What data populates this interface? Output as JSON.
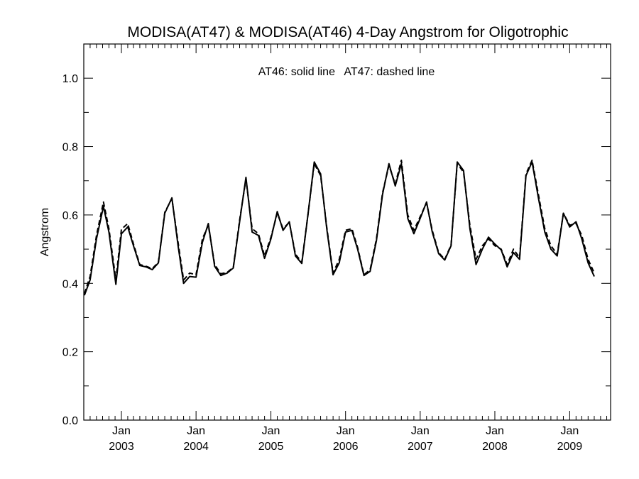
{
  "chart_data": {
    "type": "line",
    "title": "MODISA(AT47) & MODISA(AT46) 4-Day Angstrom for Oligotrophic",
    "annotation": "AT46: solid line   AT47: dashed line",
    "ylabel": "Angstrom",
    "xlabel": "",
    "ylim": [
      0.0,
      1.1
    ],
    "xlim": [
      "2002-07-01",
      "2009-07-20"
    ],
    "yticks": [
      {
        "value": 0.0,
        "label": "0.0"
      },
      {
        "value": 0.2,
        "label": "0.2"
      },
      {
        "value": 0.4,
        "label": "0.4"
      },
      {
        "value": 0.6,
        "label": "0.6"
      },
      {
        "value": 0.8,
        "label": "0.8"
      },
      {
        "value": 1.0,
        "label": "1.0"
      }
    ],
    "xticks": [
      {
        "date": "2003-01-01",
        "month": "Jan",
        "year": "2003"
      },
      {
        "date": "2004-01-01",
        "month": "Jan",
        "year": "2004"
      },
      {
        "date": "2005-01-01",
        "month": "Jan",
        "year": "2005"
      },
      {
        "date": "2006-01-01",
        "month": "Jan",
        "year": "2006"
      },
      {
        "date": "2007-01-01",
        "month": "Jan",
        "year": "2007"
      },
      {
        "date": "2008-01-01",
        "month": "Jan",
        "year": "2008"
      },
      {
        "date": "2009-01-01",
        "month": "Jan",
        "year": "2009"
      }
    ],
    "grid": false,
    "series": [
      {
        "name": "AT46",
        "style": "solid",
        "color": "#000000",
        "points": [
          [
            "2002-07-04",
            0.365
          ],
          [
            "2002-08-01",
            0.41
          ],
          [
            "2002-09-01",
            0.53
          ],
          [
            "2002-10-05",
            0.625
          ],
          [
            "2002-11-01",
            0.55
          ],
          [
            "2002-12-05",
            0.397
          ],
          [
            "2003-01-01",
            0.545
          ],
          [
            "2003-02-01",
            0.565
          ],
          [
            "2003-03-01",
            0.51
          ],
          [
            "2003-04-01",
            0.452
          ],
          [
            "2003-05-01",
            0.448
          ],
          [
            "2003-06-01",
            0.44
          ],
          [
            "2003-07-01",
            0.46
          ],
          [
            "2003-08-01",
            0.605
          ],
          [
            "2003-09-05",
            0.65
          ],
          [
            "2003-10-05",
            0.51
          ],
          [
            "2003-11-01",
            0.4
          ],
          [
            "2003-12-01",
            0.42
          ],
          [
            "2004-01-01",
            0.418
          ],
          [
            "2004-02-01",
            0.52
          ],
          [
            "2004-03-01",
            0.575
          ],
          [
            "2004-04-01",
            0.45
          ],
          [
            "2004-05-01",
            0.423
          ],
          [
            "2004-06-01",
            0.43
          ],
          [
            "2004-07-01",
            0.445
          ],
          [
            "2004-08-01",
            0.58
          ],
          [
            "2004-09-01",
            0.71
          ],
          [
            "2004-10-01",
            0.55
          ],
          [
            "2004-11-01",
            0.54
          ],
          [
            "2004-12-01",
            0.473
          ],
          [
            "2005-01-01",
            0.53
          ],
          [
            "2005-02-01",
            0.61
          ],
          [
            "2005-03-01",
            0.555
          ],
          [
            "2005-04-01",
            0.58
          ],
          [
            "2005-05-01",
            0.48
          ],
          [
            "2005-06-01",
            0.458
          ],
          [
            "2005-07-01",
            0.6
          ],
          [
            "2005-08-01",
            0.755
          ],
          [
            "2005-09-01",
            0.72
          ],
          [
            "2005-10-01",
            0.56
          ],
          [
            "2005-11-01",
            0.425
          ],
          [
            "2005-12-01",
            0.46
          ],
          [
            "2006-01-01",
            0.55
          ],
          [
            "2006-02-01",
            0.555
          ],
          [
            "2006-03-01",
            0.5
          ],
          [
            "2006-04-01",
            0.423
          ],
          [
            "2006-05-01",
            0.435
          ],
          [
            "2006-06-01",
            0.525
          ],
          [
            "2006-07-01",
            0.66
          ],
          [
            "2006-08-01",
            0.75
          ],
          [
            "2006-09-01",
            0.685
          ],
          [
            "2006-10-01",
            0.75
          ],
          [
            "2006-11-01",
            0.59
          ],
          [
            "2006-12-01",
            0.545
          ],
          [
            "2007-01-01",
            0.59
          ],
          [
            "2007-02-01",
            0.638
          ],
          [
            "2007-03-01",
            0.55
          ],
          [
            "2007-04-01",
            0.487
          ],
          [
            "2007-05-01",
            0.468
          ],
          [
            "2007-06-01",
            0.51
          ],
          [
            "2007-07-01",
            0.755
          ],
          [
            "2007-08-01",
            0.73
          ],
          [
            "2007-09-01",
            0.56
          ],
          [
            "2007-10-01",
            0.455
          ],
          [
            "2007-11-01",
            0.5
          ],
          [
            "2007-12-01",
            0.535
          ],
          [
            "2008-01-01",
            0.515
          ],
          [
            "2008-02-01",
            0.498
          ],
          [
            "2008-03-01",
            0.448
          ],
          [
            "2008-04-01",
            0.49
          ],
          [
            "2008-05-01",
            0.47
          ],
          [
            "2008-06-01",
            0.715
          ],
          [
            "2008-07-01",
            0.755
          ],
          [
            "2008-08-01",
            0.65
          ],
          [
            "2008-09-01",
            0.55
          ],
          [
            "2008-10-01",
            0.5
          ],
          [
            "2008-11-01",
            0.48
          ],
          [
            "2008-12-01",
            0.605
          ],
          [
            "2009-01-01",
            0.565
          ],
          [
            "2009-02-01",
            0.58
          ],
          [
            "2009-03-01",
            0.53
          ],
          [
            "2009-04-01",
            0.46
          ],
          [
            "2009-05-01",
            0.42
          ]
        ]
      },
      {
        "name": "AT47",
        "style": "dashed",
        "color": "#000000",
        "points": [
          [
            "2002-07-04",
            0.37
          ],
          [
            "2002-08-01",
            0.42
          ],
          [
            "2002-09-01",
            0.54
          ],
          [
            "2002-10-05",
            0.638
          ],
          [
            "2002-11-01",
            0.56
          ],
          [
            "2002-12-05",
            0.41
          ],
          [
            "2003-01-01",
            0.558
          ],
          [
            "2003-02-01",
            0.575
          ],
          [
            "2003-03-01",
            0.515
          ],
          [
            "2003-04-01",
            0.455
          ],
          [
            "2003-05-01",
            0.45
          ],
          [
            "2003-06-01",
            0.443
          ],
          [
            "2003-07-01",
            0.462
          ],
          [
            "2003-08-01",
            0.608
          ],
          [
            "2003-09-05",
            0.648
          ],
          [
            "2003-10-05",
            0.52
          ],
          [
            "2003-11-01",
            0.41
          ],
          [
            "2003-12-01",
            0.43
          ],
          [
            "2004-01-01",
            0.425
          ],
          [
            "2004-02-01",
            0.53
          ],
          [
            "2004-03-01",
            0.57
          ],
          [
            "2004-04-01",
            0.455
          ],
          [
            "2004-05-01",
            0.428
          ],
          [
            "2004-06-01",
            0.432
          ],
          [
            "2004-07-01",
            0.447
          ],
          [
            "2004-08-01",
            0.585
          ],
          [
            "2004-09-01",
            0.705
          ],
          [
            "2004-10-01",
            0.56
          ],
          [
            "2004-11-01",
            0.545
          ],
          [
            "2004-12-01",
            0.48
          ],
          [
            "2005-01-01",
            0.535
          ],
          [
            "2005-02-01",
            0.605
          ],
          [
            "2005-03-01",
            0.56
          ],
          [
            "2005-04-01",
            0.578
          ],
          [
            "2005-05-01",
            0.485
          ],
          [
            "2005-06-01",
            0.462
          ],
          [
            "2005-07-01",
            0.6
          ],
          [
            "2005-08-01",
            0.75
          ],
          [
            "2005-09-01",
            0.715
          ],
          [
            "2005-10-01",
            0.565
          ],
          [
            "2005-11-01",
            0.43
          ],
          [
            "2005-12-01",
            0.47
          ],
          [
            "2006-01-01",
            0.555
          ],
          [
            "2006-02-01",
            0.56
          ],
          [
            "2006-03-01",
            0.505
          ],
          [
            "2006-04-01",
            0.425
          ],
          [
            "2006-05-01",
            0.44
          ],
          [
            "2006-06-01",
            0.53
          ],
          [
            "2006-07-01",
            0.665
          ],
          [
            "2006-08-01",
            0.745
          ],
          [
            "2006-09-01",
            0.69
          ],
          [
            "2006-10-01",
            0.76
          ],
          [
            "2006-11-01",
            0.6
          ],
          [
            "2006-12-01",
            0.555
          ],
          [
            "2007-01-01",
            0.595
          ],
          [
            "2007-02-01",
            0.635
          ],
          [
            "2007-03-01",
            0.555
          ],
          [
            "2007-04-01",
            0.49
          ],
          [
            "2007-05-01",
            0.47
          ],
          [
            "2007-06-01",
            0.512
          ],
          [
            "2007-07-01",
            0.75
          ],
          [
            "2007-08-01",
            0.725
          ],
          [
            "2007-09-01",
            0.57
          ],
          [
            "2007-10-01",
            0.47
          ],
          [
            "2007-11-01",
            0.51
          ],
          [
            "2007-12-01",
            0.53
          ],
          [
            "2008-01-01",
            0.51
          ],
          [
            "2008-02-01",
            0.5
          ],
          [
            "2008-03-01",
            0.455
          ],
          [
            "2008-04-01",
            0.5
          ],
          [
            "2008-05-01",
            0.475
          ],
          [
            "2008-06-01",
            0.72
          ],
          [
            "2008-07-01",
            0.76
          ],
          [
            "2008-08-01",
            0.66
          ],
          [
            "2008-09-01",
            0.56
          ],
          [
            "2008-10-01",
            0.51
          ],
          [
            "2008-11-01",
            0.485
          ],
          [
            "2008-12-01",
            0.605
          ],
          [
            "2009-01-01",
            0.57
          ],
          [
            "2009-02-01",
            0.575
          ],
          [
            "2009-03-01",
            0.54
          ],
          [
            "2009-04-01",
            0.47
          ],
          [
            "2009-05-01",
            0.43
          ]
        ]
      }
    ]
  }
}
